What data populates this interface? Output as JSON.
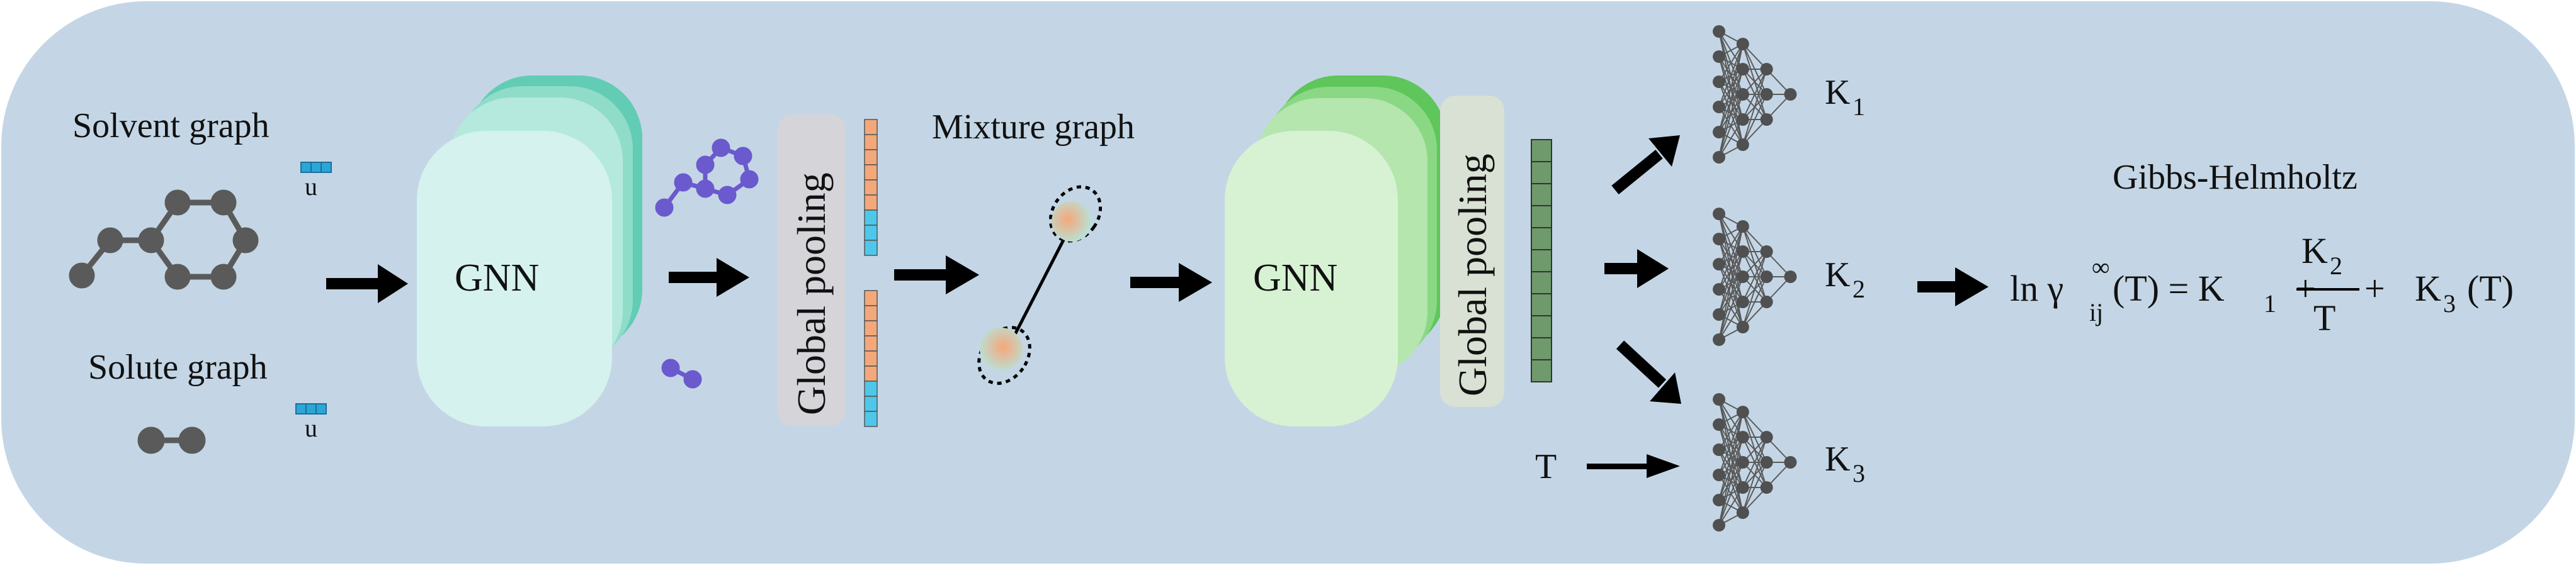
{
  "labels": {
    "solvent_graph": "Solvent graph",
    "solute_graph": "Solute graph",
    "u_top": "u",
    "u_bottom": "u",
    "gnn_1": "GNN",
    "global_pooling_1": "Global pooling",
    "mixture_graph": "Mixture graph",
    "gnn_2": "GNN",
    "global_pooling_2": "Global pooling",
    "t_input": "T",
    "k1": "K",
    "k1_sub": "1",
    "k2": "K",
    "k2_sub": "2",
    "k3": "K",
    "k3_sub": "3",
    "gibbs_title": "Gibbs-Helmholtz"
  },
  "equation": {
    "ln": "ln γ",
    "gamma_sub": "ij",
    "gamma_sup": "∞",
    "lhs_arg": "(T) = K",
    "k1_sub": "1",
    "plus1": "+",
    "num": "K",
    "num_sub": "2",
    "den": "T",
    "plus2": "+",
    "k3": "K",
    "k3_sub": "3",
    "k3_arg": "(T)"
  },
  "colors": {
    "background_panel": "#c4d6e5",
    "gnn1_front": "#d5f2ee",
    "gnn1_layers": [
      "#b5e9de",
      "#8fdcc9",
      "#62ccb4"
    ],
    "gnn2_front": "#d6f2d3",
    "gnn2_layers": [
      "#b4e6ae",
      "#8bd884",
      "#5ec65b"
    ],
    "pool1_bg": "#d5d5d9",
    "pool2_bg": "#d9e1d4",
    "orange_cell": "#f4a87a",
    "blue_cell": "#4dc8ea",
    "green_cell": "#6f9a6b",
    "node_gray": "#5a5a5a",
    "node_purple": "#6a5acd",
    "u_vector": "#2aa7d6"
  }
}
